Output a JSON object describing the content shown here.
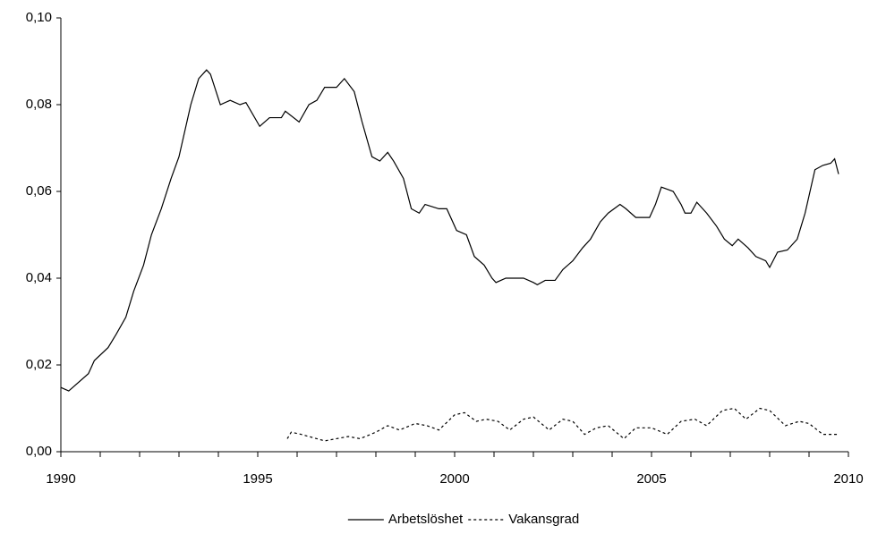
{
  "chart_data": {
    "type": "line",
    "xlim": [
      1990,
      2010
    ],
    "xticks": [
      1990,
      1995,
      2000,
      2005,
      2010
    ],
    "x_minor_ticks": [
      1991,
      1992,
      1993,
      1994,
      1996,
      1997,
      1998,
      1999,
      2001,
      2002,
      2003,
      2004,
      2006,
      2007,
      2008,
      2009
    ],
    "ylim": [
      0,
      0.1
    ],
    "yticks": [
      {
        "value": 0,
        "label": "0,00"
      },
      {
        "value": 0.02,
        "label": "0,02"
      },
      {
        "value": 0.04,
        "label": "0,04"
      },
      {
        "value": 0.06,
        "label": "0,06"
      },
      {
        "value": 0.08,
        "label": "0,08"
      },
      {
        "value": 0.1,
        "label": "0,10"
      }
    ],
    "grid": false,
    "legend": "bottom",
    "series": [
      {
        "name": "Arbetslöshet",
        "color": "#000000",
        "dash": "solid",
        "x": [
          1990.0,
          1990.2,
          1990.7,
          1990.85,
          1991.2,
          1991.4,
          1991.65,
          1991.85,
          1992.1,
          1992.3,
          1992.55,
          1992.8,
          1993.0,
          1993.3,
          1993.5,
          1993.7,
          1993.8,
          1994.05,
          1994.3,
          1994.55,
          1994.7,
          1995.05,
          1995.3,
          1995.6,
          1995.7,
          1996.05,
          1996.3,
          1996.5,
          1996.7,
          1997.0,
          1997.2,
          1997.45,
          1997.65,
          1997.9,
          1998.1,
          1998.3,
          1998.45,
          1998.7,
          1998.9,
          1999.1,
          1999.25,
          1999.6,
          1999.8,
          2000.05,
          2000.3,
          2000.5,
          2000.75,
          2000.95,
          2001.05,
          2001.3,
          2001.75,
          2002.0,
          2002.1,
          2002.3,
          2002.55,
          2002.75,
          2003.0,
          2003.25,
          2003.45,
          2003.7,
          2003.9,
          2004.2,
          2004.35,
          2004.6,
          2004.95,
          2005.1,
          2005.25,
          2005.4,
          2005.55,
          2005.75,
          2005.85,
          2006.0,
          2006.15,
          2006.4,
          2006.65,
          2006.85,
          2007.05,
          2007.2,
          2007.45,
          2007.65,
          2007.9,
          2008.0,
          2008.2,
          2008.45,
          2008.7,
          2008.9,
          2009.15,
          2009.35,
          2009.55,
          2009.65,
          2009.75
        ],
        "values": [
          0.0148,
          0.014,
          0.018,
          0.021,
          0.024,
          0.027,
          0.031,
          0.037,
          0.043,
          0.05,
          0.056,
          0.063,
          0.068,
          0.08,
          0.086,
          0.088,
          0.087,
          0.08,
          0.081,
          0.08,
          0.0805,
          0.075,
          0.077,
          0.077,
          0.0785,
          0.076,
          0.08,
          0.081,
          0.084,
          0.084,
          0.086,
          0.083,
          0.076,
          0.068,
          0.067,
          0.069,
          0.067,
          0.063,
          0.056,
          0.055,
          0.057,
          0.056,
          0.056,
          0.051,
          0.05,
          0.045,
          0.043,
          0.04,
          0.039,
          0.04,
          0.04,
          0.039,
          0.0385,
          0.0395,
          0.0395,
          0.042,
          0.044,
          0.047,
          0.049,
          0.053,
          0.055,
          0.057,
          0.056,
          0.054,
          0.054,
          0.057,
          0.061,
          0.0605,
          0.06,
          0.057,
          0.055,
          0.055,
          0.0575,
          0.055,
          0.052,
          0.049,
          0.0475,
          0.049,
          0.047,
          0.045,
          0.044,
          0.0425,
          0.046,
          0.0465,
          0.049,
          0.055,
          0.065,
          0.066,
          0.0665,
          0.0675,
          0.064
        ]
      },
      {
        "name": "Vakansgrad",
        "color": "#000000",
        "dash": "dotted",
        "x": [
          1995.75,
          1995.85,
          1996.1,
          1996.5,
          1996.7,
          1997.0,
          1997.3,
          1997.6,
          1998.0,
          1998.3,
          1998.6,
          1999.0,
          1999.3,
          1999.6,
          2000.0,
          2000.25,
          2000.55,
          2000.8,
          2001.1,
          2001.4,
          2001.75,
          2002.0,
          2002.4,
          2002.75,
          2003.0,
          2003.3,
          2003.6,
          2003.9,
          2004.3,
          2004.6,
          2005.0,
          2005.4,
          2005.75,
          2006.1,
          2006.4,
          2006.8,
          2007.1,
          2007.4,
          2007.75,
          2008.0,
          2008.4,
          2008.75,
          2009.0,
          2009.35,
          2009.75
        ],
        "values": [
          0.003,
          0.0045,
          0.004,
          0.003,
          0.0025,
          0.003,
          0.0035,
          0.003,
          0.0045,
          0.006,
          0.005,
          0.0065,
          0.006,
          0.005,
          0.0085,
          0.009,
          0.007,
          0.0075,
          0.007,
          0.005,
          0.0075,
          0.008,
          0.005,
          0.0075,
          0.007,
          0.004,
          0.0055,
          0.006,
          0.003,
          0.0055,
          0.0055,
          0.004,
          0.007,
          0.0075,
          0.006,
          0.0095,
          0.01,
          0.0075,
          0.01,
          0.0095,
          0.006,
          0.007,
          0.0065,
          0.004,
          0.004
        ]
      }
    ]
  }
}
